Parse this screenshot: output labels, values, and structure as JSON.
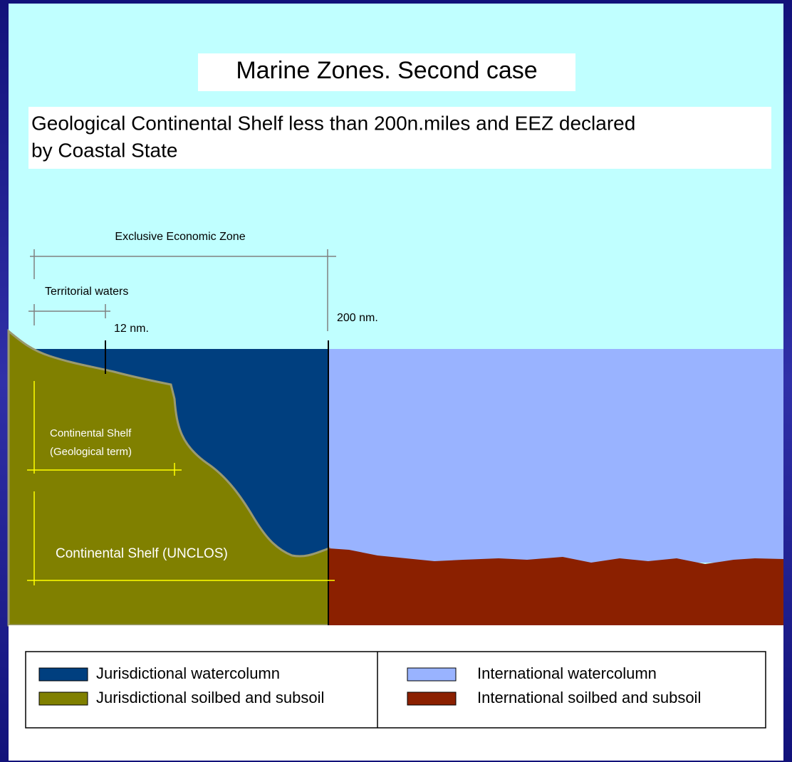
{
  "header": {
    "title": "Marine Zones. Second case",
    "subtitle": [
      "Geological Continental Shelf less than 200n.miles and EEZ declared",
      "by Coastal State"
    ]
  },
  "annotations": {
    "eez": "Exclusive Economic Zone",
    "territorial": "Territorial waters",
    "nm12": "12 nm.",
    "nm200": "200 nm.",
    "geo_shelf": [
      "Continental Shelf",
      "(Geological term)"
    ],
    "unclos_shelf": "Continental Shelf (UNCLOS)"
  },
  "legend": [
    {
      "label": "Jurisdictional watercolumn",
      "color": "#003f7f"
    },
    {
      "label": "Jurisdictional soilbed and subsoil",
      "color": "#808000"
    },
    {
      "label": "International watercolumn",
      "color": "#99b3ff"
    },
    {
      "label": "International soilbed and subsoil",
      "color": "#8b2000"
    }
  ]
}
